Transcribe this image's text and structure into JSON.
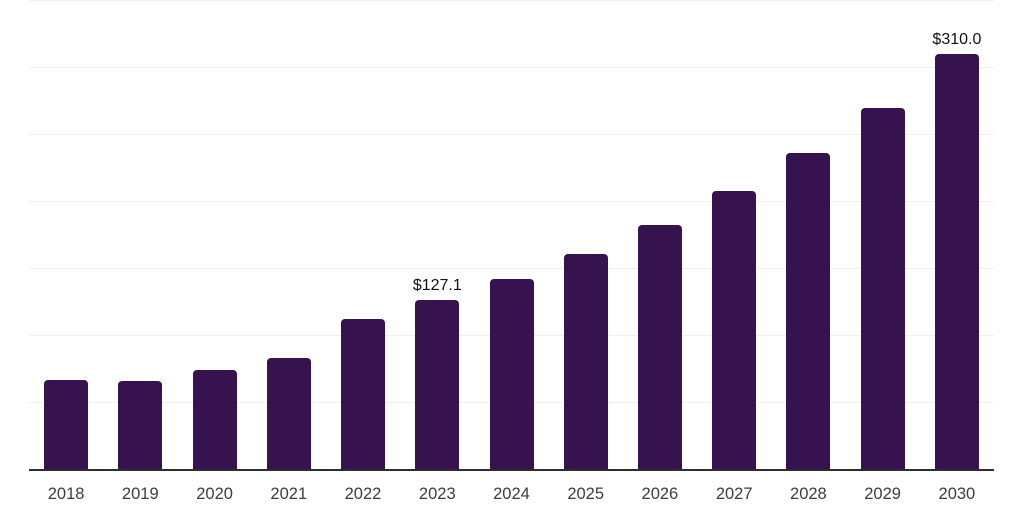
{
  "chart_data": {
    "type": "bar",
    "title": "",
    "xlabel": "",
    "ylabel": "",
    "categories": [
      "2018",
      "2019",
      "2020",
      "2021",
      "2022",
      "2023",
      "2024",
      "2025",
      "2026",
      "2027",
      "2028",
      "2029",
      "2030"
    ],
    "values": [
      67.0,
      66.5,
      74.9,
      83.6,
      112.6,
      127.1,
      142.2,
      161.3,
      182.9,
      207.9,
      236.7,
      269.7,
      310.0
    ],
    "value_labels": [
      "",
      "",
      "",
      "",
      "",
      "$127.1",
      "",
      "",
      "",
      "",
      "",
      "",
      "$310.0"
    ],
    "ylim": [
      0,
      350
    ],
    "gridline_step": 50,
    "grid": true,
    "legend": false,
    "y_axis_labels_visible": false,
    "colors": {
      "bar": "#36124f",
      "axis_line": "#2e2e2e",
      "gridline": "#f0f0f0",
      "tick_label": "#3d3d3d",
      "value_label": "#111111",
      "background": "#ffffff"
    }
  }
}
